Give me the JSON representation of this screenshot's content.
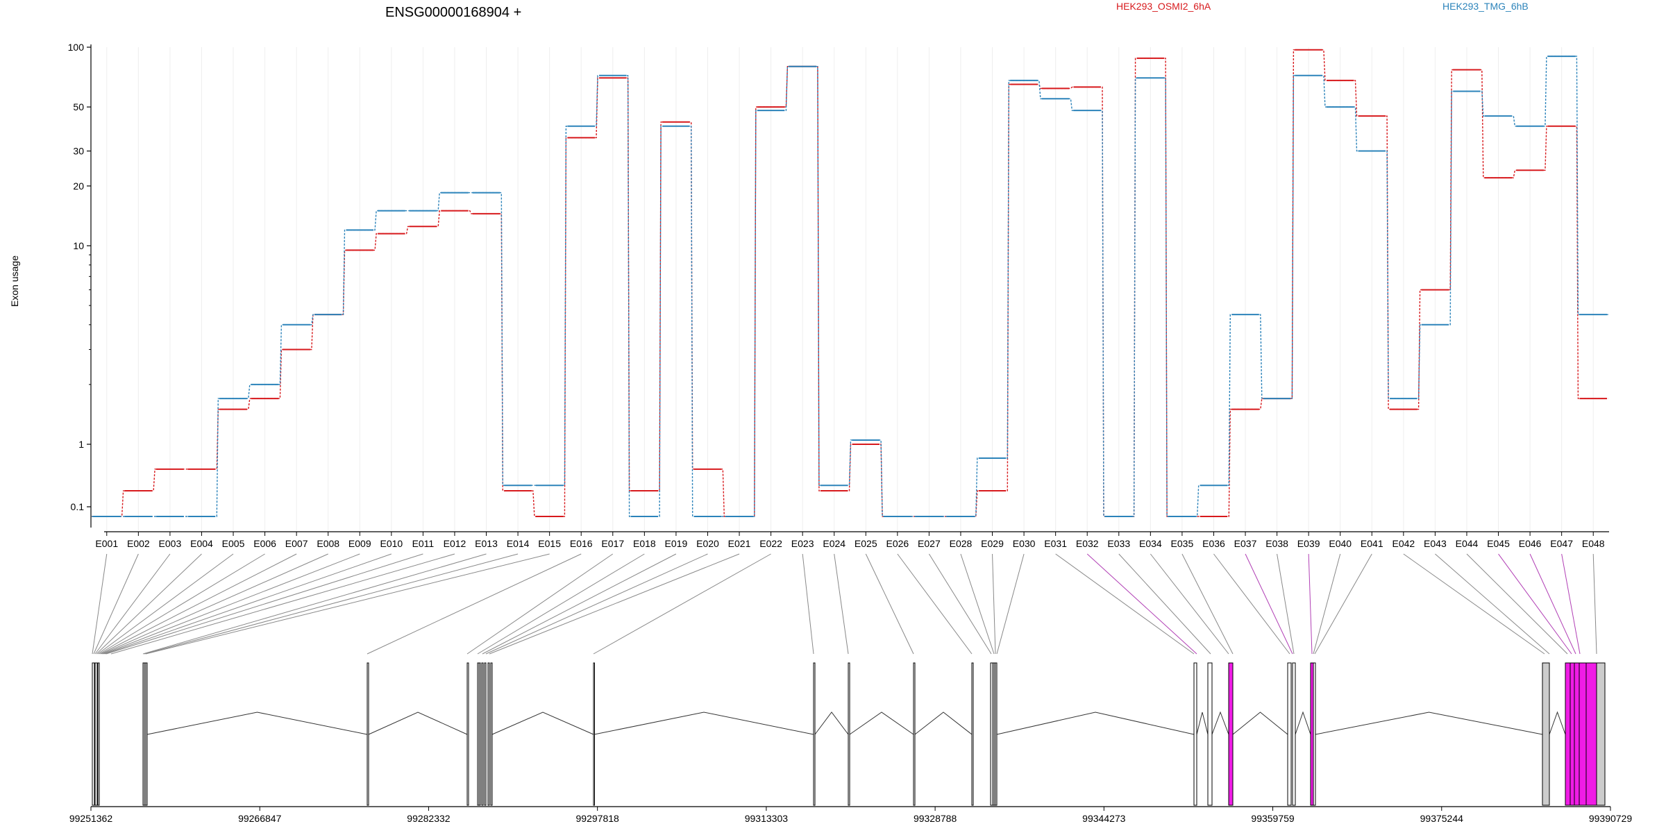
{
  "chart_data": {
    "type": "line",
    "title": "ENSG00000168904 +",
    "ylabel": "Exon usage",
    "yscale": "log",
    "ylim": [
      0.07,
      100
    ],
    "yticks": [
      "100",
      "50",
      "30",
      "20",
      "10",
      "1",
      "0.1"
    ],
    "ytick_values": [
      100,
      50,
      30,
      20,
      10,
      1,
      0.1
    ],
    "categories": [
      "E001",
      "E002",
      "E003",
      "E004",
      "E005",
      "E006",
      "E007",
      "E008",
      "E009",
      "E010",
      "E011",
      "E012",
      "E013",
      "E014",
      "E015",
      "E016",
      "E017",
      "E018",
      "E019",
      "E020",
      "E021",
      "E022",
      "E023",
      "E024",
      "E025",
      "E026",
      "E027",
      "E028",
      "E029",
      "E030",
      "E031",
      "E032",
      "E033",
      "E034",
      "E035",
      "E036",
      "E037",
      "E038",
      "E039",
      "E040",
      "E041",
      "E042",
      "E043",
      "E044",
      "E045",
      "E046",
      "E047",
      "E048"
    ],
    "series": [
      {
        "name": "HEK293_OSMI2_6hA",
        "color": "#d7191c",
        "values": [
          0.07,
          0.18,
          0.4,
          0.4,
          1.5,
          1.7,
          3,
          4.5,
          9.5,
          11.5,
          12.5,
          15,
          14.5,
          0.18,
          0.07,
          35,
          70,
          0.18,
          42,
          0.4,
          0.07,
          50,
          80,
          0.18,
          1,
          0.07,
          0.07,
          0.07,
          0.18,
          65,
          62,
          63,
          0.07,
          88,
          0.07,
          0.07,
          1.5,
          1.7,
          97,
          68,
          45,
          1.5,
          6,
          77,
          22,
          24,
          40,
          1.7
        ]
      },
      {
        "name": "HEK293_TMG_6hB",
        "color": "#2b83ba",
        "values": [
          0.07,
          0.07,
          0.07,
          0.07,
          1.7,
          2,
          4,
          4.5,
          12,
          15,
          15,
          18.5,
          18.5,
          0.22,
          0.22,
          40,
          72,
          0.07,
          40,
          0.07,
          0.07,
          48,
          80,
          0.22,
          1.05,
          0.07,
          0.07,
          0.07,
          0.6,
          68,
          55,
          48,
          0.07,
          70,
          0.07,
          0.22,
          4.5,
          1.7,
          72,
          50,
          30,
          1.7,
          4,
          60,
          45,
          40,
          90,
          4.5
        ]
      }
    ],
    "gene_coordinates": [
      "99251362",
      "99266847",
      "99282332",
      "99297818",
      "99313303",
      "99328788",
      "99344273",
      "99359759",
      "99375244",
      "99390729"
    ],
    "highlighted_exons": [
      "E032",
      "E037",
      "E039",
      "E045",
      "E046",
      "E047"
    ],
    "grid": true
  }
}
